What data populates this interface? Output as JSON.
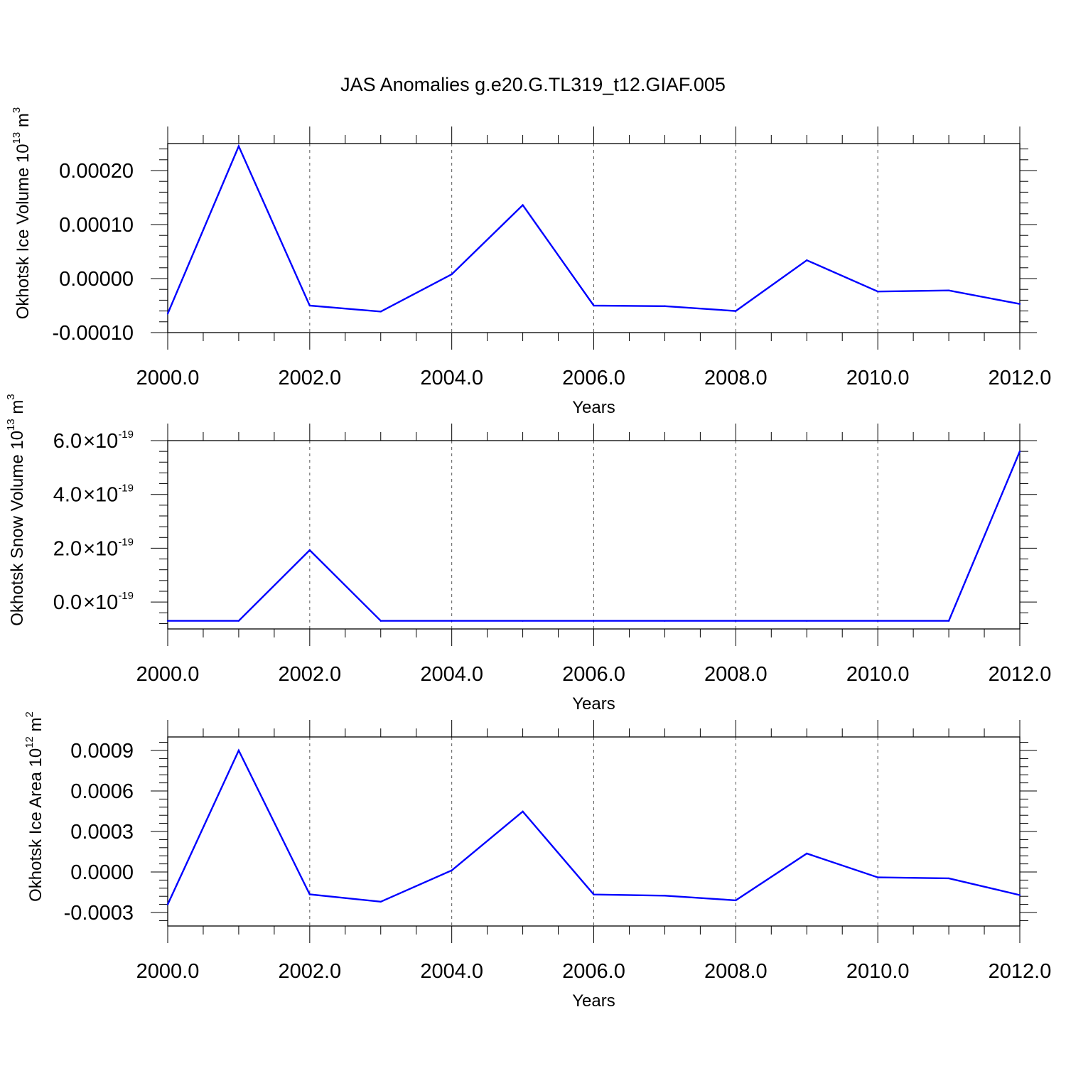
{
  "figure": {
    "title": "JAS Anomalies g.e20.G.TL319_t12.GIAF.005"
  },
  "colors": {
    "series": "#0000ff",
    "frame": "#000000",
    "grid": "#555555"
  },
  "chart_data": [
    {
      "type": "line",
      "xlabel": "Years",
      "ylabel": {
        "main": "Okhotsk Ice Volume 10",
        "exponent": "13",
        "unit": " m",
        "unit_exponent": "3"
      },
      "x": [
        2000,
        2001,
        2002,
        2003,
        2004,
        2005,
        2006,
        2007,
        2008,
        2009,
        2010,
        2011,
        2012
      ],
      "values": [
        -6.5e-05,
        0.000245,
        -5e-05,
        -6.1e-05,
        8e-06,
        0.000136,
        -5e-05,
        -5.1e-05,
        -6e-05,
        3.4e-05,
        -2.4e-05,
        -2.2e-05,
        -4.7e-05
      ],
      "xlim": [
        2000,
        2012
      ],
      "ylim": [
        -0.0001,
        0.00025
      ],
      "yticks": [
        {
          "value": -0.0001,
          "label": "-0.00010"
        },
        {
          "value": 0.0,
          "label": "0.00000"
        },
        {
          "value": 0.0001,
          "label": "0.00010"
        },
        {
          "value": 0.0002,
          "label": "0.00020"
        }
      ],
      "xticks": [
        {
          "value": 2000,
          "label": "2000.0"
        },
        {
          "value": 2002,
          "label": "2002.0"
        },
        {
          "value": 2004,
          "label": "2004.0"
        },
        {
          "value": 2006,
          "label": "2006.0"
        },
        {
          "value": 2008,
          "label": "2008.0"
        },
        {
          "value": 2010,
          "label": "2010.0"
        },
        {
          "value": 2012,
          "label": "2012.0"
        }
      ],
      "grid": "vertical dashed at major x ticks"
    },
    {
      "type": "line",
      "xlabel": "Years",
      "ylabel": {
        "main": "Okhotsk Snow Volume 10",
        "exponent": "13",
        "unit": " m",
        "unit_exponent": "3"
      },
      "x": [
        2000,
        2001,
        2002,
        2003,
        2004,
        2005,
        2006,
        2007,
        2008,
        2009,
        2010,
        2011,
        2012
      ],
      "values": [
        -7e-20,
        -7e-20,
        1.93e-19,
        -7e-20,
        -7e-20,
        -7e-20,
        -7e-20,
        -7e-20,
        -7e-20,
        -7e-20,
        -7e-20,
        -7e-20,
        5.6e-19
      ],
      "xlim": [
        2000,
        2012
      ],
      "ylim": [
        -1e-19,
        6e-19
      ],
      "yticks": [
        {
          "value": 0,
          "mantissa": "0.0",
          "times": "×",
          "base": "10",
          "exponent": "-19"
        },
        {
          "value": 2e-19,
          "mantissa": "2.0",
          "times": "×",
          "base": "10",
          "exponent": "-19"
        },
        {
          "value": 4e-19,
          "mantissa": "4.0",
          "times": "×",
          "base": "10",
          "exponent": "-19"
        },
        {
          "value": 6e-19,
          "mantissa": "6.0",
          "times": "×",
          "base": "10",
          "exponent": "-19"
        }
      ],
      "xticks": [
        {
          "value": 2000,
          "label": "2000.0"
        },
        {
          "value": 2002,
          "label": "2002.0"
        },
        {
          "value": 2004,
          "label": "2004.0"
        },
        {
          "value": 2006,
          "label": "2006.0"
        },
        {
          "value": 2008,
          "label": "2008.0"
        },
        {
          "value": 2010,
          "label": "2010.0"
        },
        {
          "value": 2012,
          "label": "2012.0"
        }
      ],
      "grid": "vertical dashed at major x ticks"
    },
    {
      "type": "line",
      "xlabel": "Years",
      "ylabel": {
        "main": "Okhotsk Ice Area 10",
        "exponent": "12",
        "unit": " m",
        "unit_exponent": "2"
      },
      "x": [
        2000,
        2001,
        2002,
        2003,
        2004,
        2005,
        2006,
        2007,
        2008,
        2009,
        2010,
        2011,
        2012
      ],
      "values": [
        -0.00024,
        0.0009,
        -0.000166,
        -0.00022,
        1.2e-05,
        0.000448,
        -0.000167,
        -0.000175,
        -0.00021,
        0.000137,
        -4e-05,
        -4.7e-05,
        -0.000171
      ],
      "xlim": [
        2000,
        2012
      ],
      "ylim": [
        -0.0004,
        0.001
      ],
      "yticks": [
        {
          "value": -0.0003,
          "label": "-0.0003"
        },
        {
          "value": 0.0,
          "label": "0.0000"
        },
        {
          "value": 0.0003,
          "label": "0.0003"
        },
        {
          "value": 0.0006,
          "label": "0.0006"
        },
        {
          "value": 0.0009,
          "label": "0.0009"
        }
      ],
      "xticks": [
        {
          "value": 2000,
          "label": "2000.0"
        },
        {
          "value": 2002,
          "label": "2002.0"
        },
        {
          "value": 2004,
          "label": "2004.0"
        },
        {
          "value": 2006,
          "label": "2006.0"
        },
        {
          "value": 2008,
          "label": "2008.0"
        },
        {
          "value": 2010,
          "label": "2010.0"
        },
        {
          "value": 2012,
          "label": "2012.0"
        }
      ],
      "grid": "vertical dashed at major x ticks"
    }
  ]
}
